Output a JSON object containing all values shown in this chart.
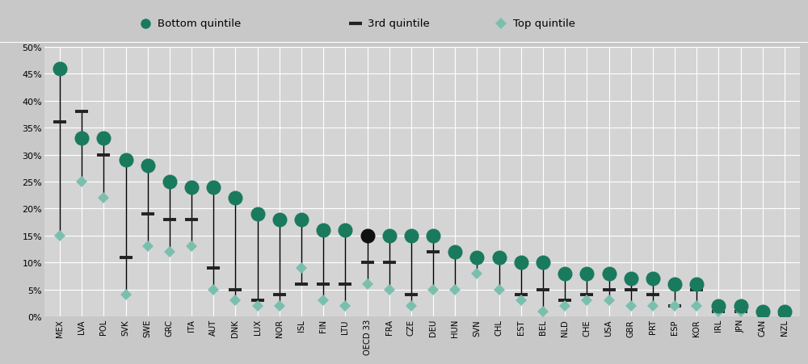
{
  "countries": [
    "MEX",
    "LVA",
    "POL",
    "SVK",
    "SWE",
    "GRC",
    "ITA",
    "AUT",
    "DNK",
    "LUX",
    "NOR",
    "ISL",
    "FIN",
    "LTU",
    "OECD 33",
    "FRA",
    "CZE",
    "DEU",
    "HUN",
    "SVN",
    "CHL",
    "EST",
    "BEL",
    "NLD",
    "CHE",
    "USA",
    "GBR",
    "PRT",
    "ESP",
    "KOR",
    "IRL",
    "JPN",
    "CAN",
    "NZL"
  ],
  "bottom_quintile": [
    46,
    33,
    33,
    29,
    28,
    25,
    24,
    24,
    22,
    19,
    18,
    18,
    16,
    16,
    15,
    15,
    15,
    15,
    12,
    11,
    11,
    10,
    10,
    8,
    8,
    8,
    7,
    7,
    6,
    6,
    2,
    2,
    1,
    1
  ],
  "third_quintile": [
    36,
    38,
    30,
    11,
    19,
    18,
    18,
    9,
    5,
    3,
    4,
    6,
    6,
    6,
    10,
    10,
    4,
    12,
    12,
    11,
    11,
    4,
    5,
    3,
    4,
    5,
    5,
    4,
    2,
    5,
    1,
    1,
    1,
    0.5
  ],
  "top_quintile": [
    15,
    25,
    22,
    4,
    13,
    12,
    13,
    5,
    3,
    2,
    2,
    9,
    3,
    2,
    6,
    5,
    2,
    5,
    5,
    8,
    5,
    3,
    1,
    2,
    3,
    3,
    2,
    2,
    2,
    2,
    1,
    1,
    0.5,
    0.5
  ],
  "oecd_index": 14,
  "bottom_color": "#1a7a5e",
  "top_color": "#7abfad",
  "third_color": "#222222",
  "oecd_bottom_color": "#111111",
  "plot_bg_color": "#d4d4d4",
  "legend_bg": "#c8c8c8",
  "fig_bg": "#c8c8c8",
  "grid_color": "#ffffff",
  "ylim": [
    0,
    50
  ],
  "ytick_vals": [
    0,
    5,
    10,
    15,
    20,
    25,
    30,
    35,
    40,
    45,
    50
  ],
  "ytick_labels": [
    "0%",
    "5%",
    "10%",
    "15%",
    "20%",
    "25%",
    "30%",
    "35%",
    "40%",
    "45%",
    "50%"
  ]
}
